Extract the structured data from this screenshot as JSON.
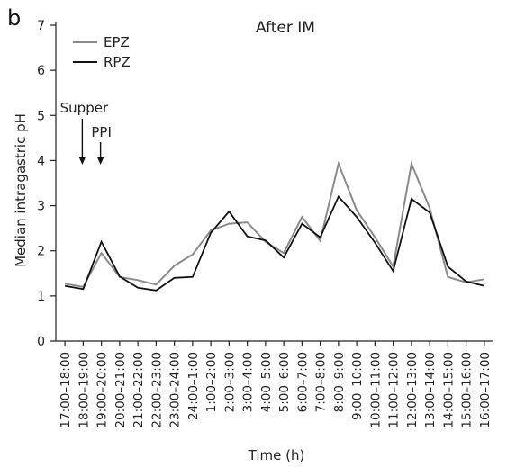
{
  "panel_label": "b",
  "chart_data": {
    "type": "line",
    "title": "After IM",
    "xlabel": "Time (h)",
    "ylabel": "Median intragastric pH",
    "ylim": [
      0,
      7
    ],
    "yticks": [
      0,
      1,
      2,
      3,
      4,
      5,
      6,
      7
    ],
    "grid": false,
    "legend_position": "top-left",
    "categories": [
      "17:00–18:00",
      "18:00–19:00",
      "19:00–20:00",
      "20:00–21:00",
      "21:00–22:00",
      "22:00–23:00",
      "23:00–24:00",
      "24:00–1:00",
      "1:00–2:00",
      "2:00–3:00",
      "3:00–4:00",
      "4:00–5:00",
      "5:00–6:00",
      "6:00–7:00",
      "7:00–8:00",
      "8:00–9:00",
      "9:00–10:00",
      "10:00–11:00",
      "11:00–12:00",
      "12:00–13:00",
      "13:00–14:00",
      "14:00–15:00",
      "15:00–16:00",
      "16:00–17:00"
    ],
    "series": [
      {
        "name": "EPZ",
        "color": "#8a8a8a",
        "values": [
          1.27,
          1.2,
          1.95,
          1.42,
          1.35,
          1.25,
          1.67,
          1.92,
          2.45,
          2.6,
          2.63,
          2.2,
          1.95,
          2.75,
          2.22,
          3.93,
          2.9,
          2.3,
          1.65,
          3.93,
          2.95,
          1.42,
          1.3,
          1.37
        ]
      },
      {
        "name": "RPZ",
        "color": "#111111",
        "values": [
          1.22,
          1.15,
          2.2,
          1.43,
          1.18,
          1.12,
          1.4,
          1.42,
          2.4,
          2.87,
          2.32,
          2.23,
          1.85,
          2.6,
          2.3,
          3.2,
          2.75,
          2.18,
          1.55,
          3.15,
          2.85,
          1.65,
          1.32,
          1.22
        ]
      }
    ],
    "annotations": [
      {
        "text": "Supper",
        "category_index": 2
      },
      {
        "text": "PPI",
        "category_index": 3
      }
    ]
  }
}
